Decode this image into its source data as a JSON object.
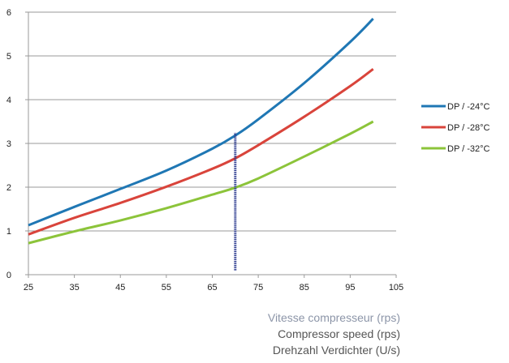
{
  "chart_data": {
    "type": "line",
    "title": "",
    "xlim": [
      25,
      105
    ],
    "ylim": [
      0,
      6
    ],
    "xticks": [
      25,
      35,
      45,
      55,
      65,
      75,
      85,
      95,
      105
    ],
    "yticks": [
      0,
      1,
      2,
      3,
      4,
      5,
      6
    ],
    "xlabel_lines": [
      "Vitesse compresseur (rps)",
      "Compressor speed (rps)",
      "Drehzahl Verdichter (U/s)"
    ],
    "ylabel": "",
    "grid": "horizontal",
    "legend_position": "right",
    "marker_line": {
      "x": 70,
      "y_from": 0.1,
      "y_to": 3.25,
      "color": "#2b3a8f",
      "style": "dotted"
    },
    "series": [
      {
        "name": "DP / -24°C",
        "color": "#1f77b4",
        "x": [
          25,
          35,
          45,
          55,
          65,
          70,
          75,
          85,
          95,
          100
        ],
        "y": [
          1.13,
          1.55,
          1.96,
          2.38,
          2.88,
          3.18,
          3.55,
          4.38,
          5.32,
          5.85
        ]
      },
      {
        "name": "DP / -28°C",
        "color": "#d9443b",
        "x": [
          25,
          35,
          45,
          55,
          65,
          70,
          75,
          85,
          95,
          100
        ],
        "y": [
          0.92,
          1.3,
          1.64,
          2.01,
          2.42,
          2.66,
          2.96,
          3.61,
          4.31,
          4.7
        ]
      },
      {
        "name": "DP / -32°C",
        "color": "#8cc43a",
        "x": [
          25,
          35,
          45,
          55,
          65,
          70,
          75,
          85,
          95,
          100
        ],
        "y": [
          0.72,
          0.99,
          1.24,
          1.52,
          1.83,
          1.99,
          2.2,
          2.7,
          3.22,
          3.5
        ]
      }
    ]
  }
}
